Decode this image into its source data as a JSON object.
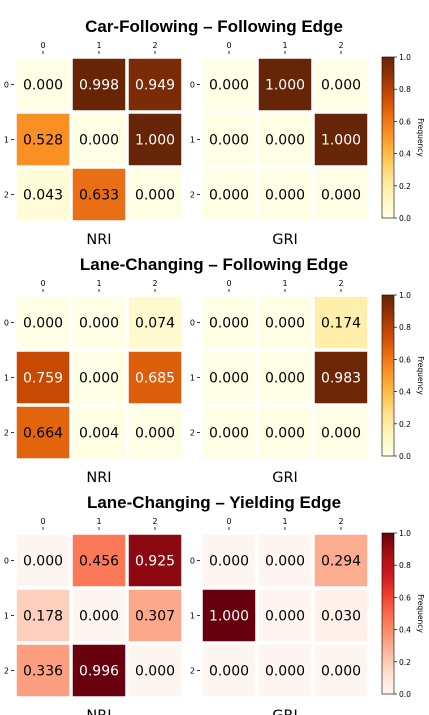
{
  "chart_data": [
    {
      "type": "heatmap",
      "title": "Car-Following – Following Edge",
      "colormap": "YlOrBr",
      "colorbar_label": "Frequency",
      "colorbar_ticks": [
        "0.0",
        "0.2",
        "0.4",
        "0.6",
        "0.8",
        "1.0"
      ],
      "clim": [
        0,
        1
      ],
      "panels": [
        {
          "label": "NRI",
          "x_ticks": [
            "0",
            "1",
            "2"
          ],
          "y_ticks": [
            "0",
            "1",
            "2"
          ],
          "values": [
            [
              0.0,
              0.998,
              0.949
            ],
            [
              0.528,
              0.0,
              1.0
            ],
            [
              0.043,
              0.633,
              0.0
            ]
          ],
          "labels": [
            [
              "0.000",
              "0.998",
              "0.949"
            ],
            [
              "0.528",
              "0.000",
              "1.000"
            ],
            [
              "0.043",
              "0.633",
              "0.000"
            ]
          ]
        },
        {
          "label": "GRI",
          "x_ticks": [
            "0",
            "1",
            "2"
          ],
          "y_ticks": [
            "0",
            "1",
            "2"
          ],
          "values": [
            [
              0.0,
              1.0,
              0.0
            ],
            [
              0.0,
              0.0,
              1.0
            ],
            [
              0.0,
              0.0,
              0.0
            ]
          ],
          "labels": [
            [
              "0.000",
              "1.000",
              "0.000"
            ],
            [
              "0.000",
              "0.000",
              "1.000"
            ],
            [
              "0.000",
              "0.000",
              "0.000"
            ]
          ]
        }
      ]
    },
    {
      "type": "heatmap",
      "title": "Lane-Changing – Following Edge",
      "colormap": "YlOrBr",
      "colorbar_label": "Frequency",
      "colorbar_ticks": [
        "0.0",
        "0.2",
        "0.4",
        "0.6",
        "0.8",
        "1.0"
      ],
      "clim": [
        0,
        1
      ],
      "panels": [
        {
          "label": "NRI",
          "x_ticks": [
            "0",
            "1",
            "2"
          ],
          "y_ticks": [
            "0",
            "1",
            "2"
          ],
          "values": [
            [
              0.0,
              0.0,
              0.074
            ],
            [
              0.759,
              0.0,
              0.685
            ],
            [
              0.664,
              0.004,
              0.0
            ]
          ],
          "labels": [
            [
              "0.000",
              "0.000",
              "0.074"
            ],
            [
              "0.759",
              "0.000",
              "0.685"
            ],
            [
              "0.664",
              "0.004",
              "0.000"
            ]
          ]
        },
        {
          "label": "GRI",
          "x_ticks": [
            "0",
            "1",
            "2"
          ],
          "y_ticks": [
            "0",
            "1",
            "2"
          ],
          "values": [
            [
              0.0,
              0.0,
              0.174
            ],
            [
              0.0,
              0.0,
              0.983
            ],
            [
              0.0,
              0.0,
              0.0
            ]
          ],
          "labels": [
            [
              "0.000",
              "0.000",
              "0.174"
            ],
            [
              "0.000",
              "0.000",
              "0.983"
            ],
            [
              "0.000",
              "0.000",
              "0.000"
            ]
          ]
        }
      ]
    },
    {
      "type": "heatmap",
      "title": "Lane-Changing – Yielding Edge",
      "colormap": "Reds",
      "colorbar_label": "Frequency",
      "colorbar_ticks": [
        "0.0",
        "0.2",
        "0.4",
        "0.6",
        "0.8",
        "1.0"
      ],
      "clim": [
        0,
        1
      ],
      "panels": [
        {
          "label": "NRI",
          "x_ticks": [
            "0",
            "1",
            "2"
          ],
          "y_ticks": [
            "0",
            "1",
            "2"
          ],
          "values": [
            [
              0.0,
              0.456,
              0.925
            ],
            [
              0.178,
              0.0,
              0.307
            ],
            [
              0.336,
              0.996,
              0.0
            ]
          ],
          "labels": [
            [
              "0.000",
              "0.456",
              "0.925"
            ],
            [
              "0.178",
              "0.000",
              "0.307"
            ],
            [
              "0.336",
              "0.996",
              "0.000"
            ]
          ]
        },
        {
          "label": "GRI",
          "x_ticks": [
            "0",
            "1",
            "2"
          ],
          "y_ticks": [
            "0",
            "1",
            "2"
          ],
          "values": [
            [
              0.0,
              0.0,
              0.294
            ],
            [
              1.0,
              0.0,
              0.03
            ],
            [
              0.0,
              0.0,
              0.0
            ]
          ],
          "labels": [
            [
              "0.000",
              "0.000",
              "0.294"
            ],
            [
              "1.000",
              "0.000",
              "0.030"
            ],
            [
              "0.000",
              "0.000",
              "0.000"
            ]
          ]
        }
      ]
    }
  ]
}
